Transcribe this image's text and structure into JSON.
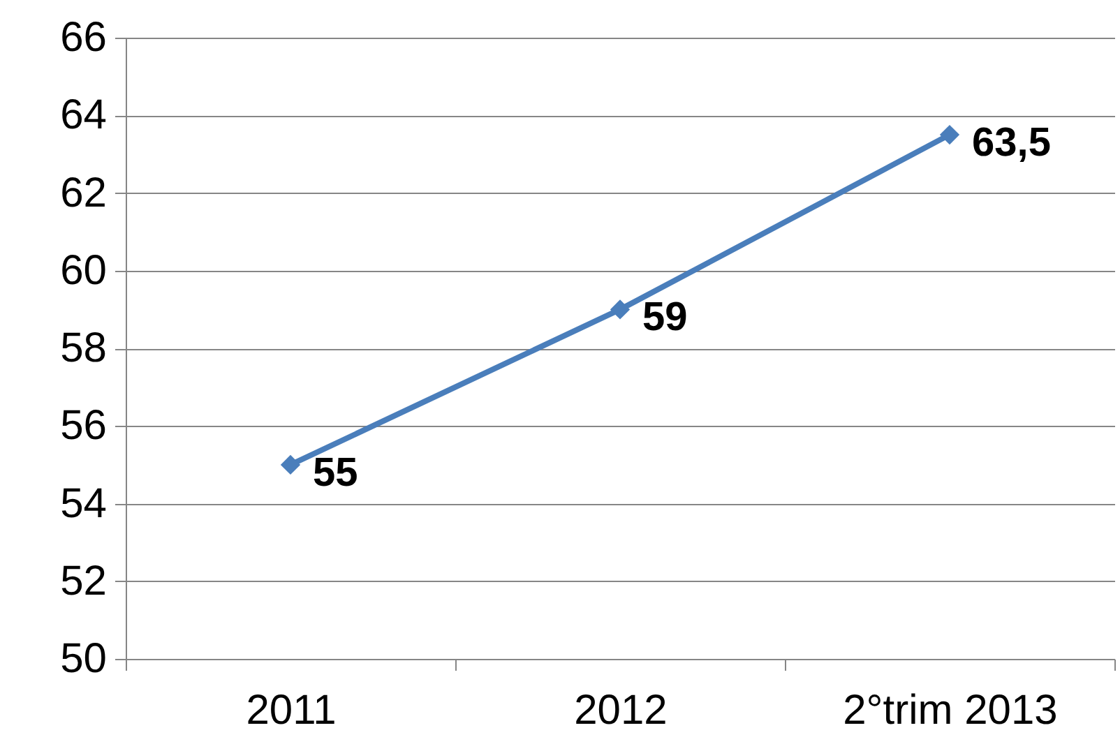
{
  "chart_data": {
    "type": "line",
    "categories": [
      "2011",
      "2012",
      "2°trim 2013"
    ],
    "series": [
      {
        "color": "#4a7ebb",
        "values": [
          55,
          59,
          63.5
        ],
        "value_labels": [
          "55",
          "59",
          "63,5"
        ]
      }
    ],
    "ylim": [
      50,
      66
    ],
    "yticks": [
      50,
      52,
      54,
      56,
      58,
      60,
      62,
      64,
      66
    ],
    "grid": "y",
    "marker": "diamond",
    "line_style": "solid"
  }
}
